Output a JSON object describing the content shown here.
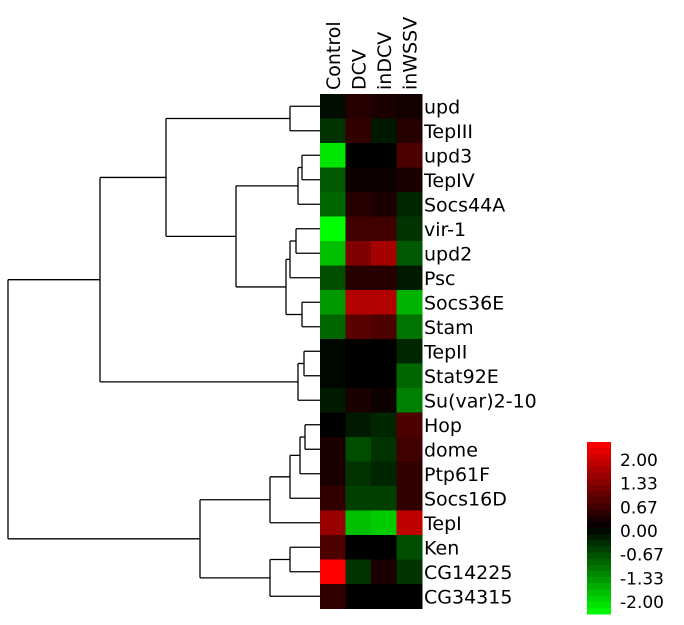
{
  "chart_data": {
    "type": "heatmap",
    "columns": [
      "Control",
      "DCV",
      "inDCV",
      "inWSSV"
    ],
    "rows": [
      "upd",
      "TepIII",
      "upd3",
      "TepIV",
      "Socs44A",
      "vir-1",
      "upd2",
      "Psc",
      "Socs36E",
      "Stam",
      "TepII",
      "Stat92E",
      "Su(var)2-10",
      "Hop",
      "dome",
      "Ptp61F",
      "Socs16D",
      "TepI",
      "Ken",
      "CG14225",
      "CG34315"
    ],
    "values": [
      [
        -0.1,
        0.3,
        0.2,
        0.15
      ],
      [
        -0.4,
        0.4,
        -0.2,
        0.3
      ],
      [
        -1.8,
        0.0,
        0.0,
        0.6
      ],
      [
        -0.7,
        0.1,
        0.1,
        0.2
      ],
      [
        -0.8,
        0.3,
        0.2,
        -0.3
      ],
      [
        -2.0,
        0.5,
        0.5,
        -0.4
      ],
      [
        -1.5,
        1.0,
        1.3,
        -0.7
      ],
      [
        -0.6,
        0.3,
        0.3,
        -0.2
      ],
      [
        -1.2,
        1.4,
        1.4,
        -1.4
      ],
      [
        -0.8,
        0.7,
        0.6,
        -0.9
      ],
      [
        -0.05,
        0.0,
        0.0,
        -0.3
      ],
      [
        -0.05,
        0.0,
        0.0,
        -0.8
      ],
      [
        -0.2,
        0.2,
        0.1,
        -1.0
      ],
      [
        0.0,
        -0.2,
        -0.3,
        0.6
      ],
      [
        0.2,
        -0.6,
        -0.4,
        0.5
      ],
      [
        0.2,
        -0.4,
        -0.3,
        0.4
      ],
      [
        0.4,
        -0.5,
        -0.5,
        0.4
      ],
      [
        1.2,
        -1.5,
        -1.6,
        1.5
      ],
      [
        0.6,
        0.0,
        0.0,
        -0.6
      ],
      [
        2.0,
        -0.4,
        0.2,
        -0.4
      ],
      [
        0.4,
        0.0,
        0.0,
        0.0
      ]
    ],
    "color_scale": {
      "min": -2.0,
      "max": 2.0,
      "low_color": "#00ff00",
      "mid_color": "#000000",
      "high_color": "#ff0000"
    },
    "legend_ticks": [
      "2.00",
      "1.33",
      "0.67",
      "0.00",
      "-0.67",
      "-1.33",
      "-2.00"
    ],
    "legend_placement": "bottom-right",
    "dendrogram_side": "left"
  }
}
